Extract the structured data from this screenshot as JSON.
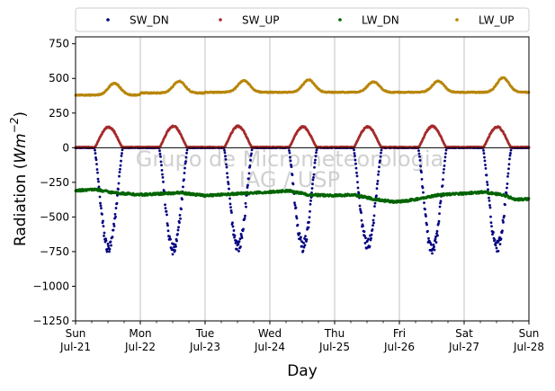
{
  "chart_data": {
    "type": "scatter",
    "xlabel": "Day",
    "ylabel_main": "Radiation (",
    "ylabel_unit": "Wm",
    "ylabel_exp": "−2",
    "ylabel_end": ")",
    "ylim": [
      -1250,
      800
    ],
    "yticks": [
      750,
      500,
      250,
      0,
      -250,
      -500,
      -750,
      -1000,
      -1250
    ],
    "ytick_labels": [
      "750",
      "500",
      "250",
      "0",
      "−250",
      "−500",
      "−750",
      "−1000",
      "−1250"
    ],
    "xlim": [
      0,
      7
    ],
    "xticks": [
      0,
      1,
      2,
      3,
      4,
      5,
      6,
      7
    ],
    "xtick_labels": [
      {
        "day": "Sun",
        "date": "Jul-21"
      },
      {
        "day": "Mon",
        "date": "Jul-22"
      },
      {
        "day": "Tue",
        "date": "Jul-23"
      },
      {
        "day": "Wed",
        "date": "Jul-24"
      },
      {
        "day": "Thu",
        "date": "Jul-25"
      },
      {
        "day": "Fri",
        "date": "Jul-26"
      },
      {
        "day": "Sat",
        "date": "Jul-27"
      },
      {
        "day": "Sun",
        "date": "Jul-28"
      }
    ],
    "grid": "vertical",
    "legend_position": "top",
    "watermark": [
      "Grupo de Micrometeorologia",
      "IAG / USP"
    ],
    "series": [
      {
        "name": "SW_DN",
        "color": "#000080",
        "sunrise": 0.29,
        "sunset": 0.73,
        "peaks": [
          -730,
          -740,
          -710,
          -710,
          -700,
          -750,
          -710,
          -700
        ]
      },
      {
        "name": "SW_UP",
        "color": "#a52a2a",
        "sunrise": 0.29,
        "sunset": 0.73,
        "peaks": [
          150,
          155,
          155,
          150,
          150,
          155,
          150,
          155
        ]
      },
      {
        "name": "LW_DN",
        "color": "#006400",
        "anchors": [
          [
            0,
            -310
          ],
          [
            0.3,
            -300
          ],
          [
            0.6,
            -325
          ],
          [
            1.0,
            -340
          ],
          [
            1.4,
            -330
          ],
          [
            1.6,
            -325
          ],
          [
            2.0,
            -345
          ],
          [
            2.4,
            -335
          ],
          [
            2.6,
            -330
          ],
          [
            3.0,
            -320
          ],
          [
            3.3,
            -310
          ],
          [
            3.6,
            -340
          ],
          [
            4.0,
            -345
          ],
          [
            4.3,
            -340
          ],
          [
            4.6,
            -370
          ],
          [
            4.9,
            -390
          ],
          [
            5.0,
            -390
          ],
          [
            5.3,
            -370
          ],
          [
            5.6,
            -340
          ],
          [
            6.0,
            -330
          ],
          [
            6.3,
            -320
          ],
          [
            6.6,
            -340
          ],
          [
            6.8,
            -375
          ],
          [
            7.0,
            -370
          ]
        ]
      },
      {
        "name": "LW_UP",
        "color": "#b8860b",
        "base": [
          380,
          395,
          400,
          400,
          400,
          400,
          400,
          400
        ],
        "peak": [
          465,
          480,
          485,
          490,
          475,
          480,
          505
        ]
      }
    ]
  }
}
